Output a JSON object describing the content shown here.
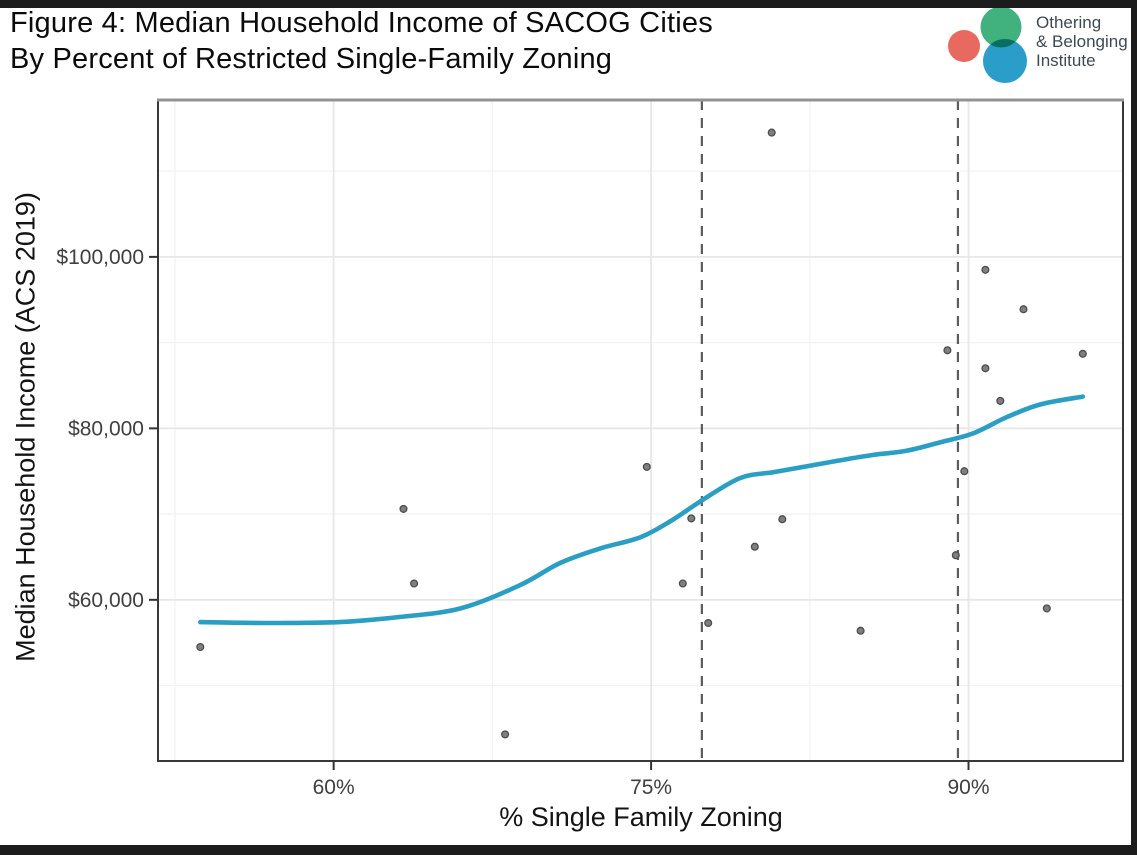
{
  "header": {
    "title_line1": "Figure 4: Median Household Income of SACOG Cities",
    "title_line2": "By Percent of Restricted Single-Family Zoning"
  },
  "logo": {
    "line1": "Othering",
    "line2": "& Belonging",
    "line3": "Institute",
    "colors": {
      "salmon": "#e8695f",
      "green": "#41b27d",
      "teal": "#2a9ec9"
    }
  },
  "chart_data": {
    "type": "scatter",
    "title": "",
    "xlabel": "% Single Family Zoning",
    "ylabel": "Median Household Income (ACS 2019)",
    "xlim": [
      51.7,
      97.3
    ],
    "ylim": [
      41200,
      118300
    ],
    "grid": true,
    "legend": false,
    "x_ticks": [
      {
        "value": 60,
        "label": "60%"
      },
      {
        "value": 75,
        "label": "75%"
      },
      {
        "value": 90,
        "label": "90%"
      }
    ],
    "y_ticks": [
      {
        "value": 60000,
        "label": "$60,000"
      },
      {
        "value": 80000,
        "label": "$80,000"
      },
      {
        "value": 100000,
        "label": "$100,000"
      }
    ],
    "x_minor_ticks": [
      52.5,
      67.5,
      82.5
    ],
    "y_minor_ticks": [
      50000,
      70000,
      90000,
      110000
    ],
    "vlines": [
      77.4,
      89.5
    ],
    "points": [
      [
        53.7,
        54500
      ],
      [
        63.3,
        70600
      ],
      [
        63.8,
        61900
      ],
      [
        68.1,
        44300
      ],
      [
        74.8,
        75500
      ],
      [
        76.5,
        61900
      ],
      [
        76.9,
        69500
      ],
      [
        77.7,
        57300
      ],
      [
        79.9,
        66200
      ],
      [
        80.7,
        114500
      ],
      [
        81.2,
        69400
      ],
      [
        84.9,
        56400
      ],
      [
        89.0,
        89100
      ],
      [
        89.4,
        65200
      ],
      [
        89.8,
        75000
      ],
      [
        90.8,
        98500
      ],
      [
        90.8,
        87000
      ],
      [
        91.5,
        83200
      ],
      [
        92.6,
        93900
      ],
      [
        93.7,
        59000
      ],
      [
        95.4,
        88700
      ]
    ],
    "smooth_line": [
      [
        53.7,
        57400
      ],
      [
        57.0,
        57300
      ],
      [
        60.3,
        57400
      ],
      [
        63.1,
        58000
      ],
      [
        66.0,
        59000
      ],
      [
        68.8,
        61700
      ],
      [
        70.7,
        64300
      ],
      [
        72.6,
        66000
      ],
      [
        74.5,
        67300
      ],
      [
        76.0,
        69300
      ],
      [
        77.4,
        71600
      ],
      [
        79.2,
        74200
      ],
      [
        80.8,
        74900
      ],
      [
        82.4,
        75600
      ],
      [
        84.0,
        76300
      ],
      [
        85.5,
        76900
      ],
      [
        87.1,
        77400
      ],
      [
        88.7,
        78400
      ],
      [
        90.2,
        79400
      ],
      [
        91.8,
        81300
      ],
      [
        93.4,
        82800
      ],
      [
        95.4,
        83700
      ]
    ],
    "colors": {
      "point_fill": "#7f7f7f",
      "point_stroke": "#4d4d4d",
      "trend_line": "#2b9ec3",
      "vline": "#5c5c5c",
      "grid_major": "#e7e7e7",
      "grid_minor": "#f2f2f2",
      "axis_text": "#404040",
      "panel_border": "#383838"
    }
  }
}
